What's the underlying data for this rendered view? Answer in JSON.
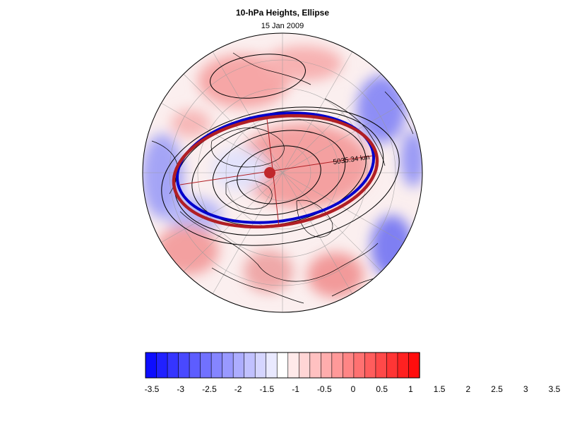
{
  "figure": {
    "title": "10-hPa Heights, Ellipse",
    "date": "15 Jan 2009",
    "axis_label": "5035.34 km"
  },
  "colors": {
    "ellipse_fit": "#b01e24",
    "ellipse_observed": "#0000cc",
    "centroid": "#c0282c",
    "contour": "#000000"
  },
  "colorbar": {
    "colors": [
      "#0d0dff",
      "#2121ff",
      "#3535ff",
      "#4949ff",
      "#5d5dff",
      "#7171ff",
      "#8585ff",
      "#9999ff",
      "#adadff",
      "#c1c1ff",
      "#d5d5ff",
      "#e9e9ff",
      "#ffffff",
      "#ffe9e9",
      "#ffd5d5",
      "#ffc1c1",
      "#ffadad",
      "#ff9999",
      "#ff8585",
      "#ff7171",
      "#ff5d5d",
      "#ff4949",
      "#ff3535",
      "#ff2121",
      "#ff0d0d"
    ],
    "ticks": [
      "-3.5",
      "-3",
      "-2.5",
      "-2",
      "-1.5",
      "-1",
      "-0.5",
      "0",
      "0.5",
      "1",
      "1.5",
      "2",
      "2.5",
      "3",
      "3.5"
    ],
    "range": [
      -3.5,
      3.5
    ]
  }
}
